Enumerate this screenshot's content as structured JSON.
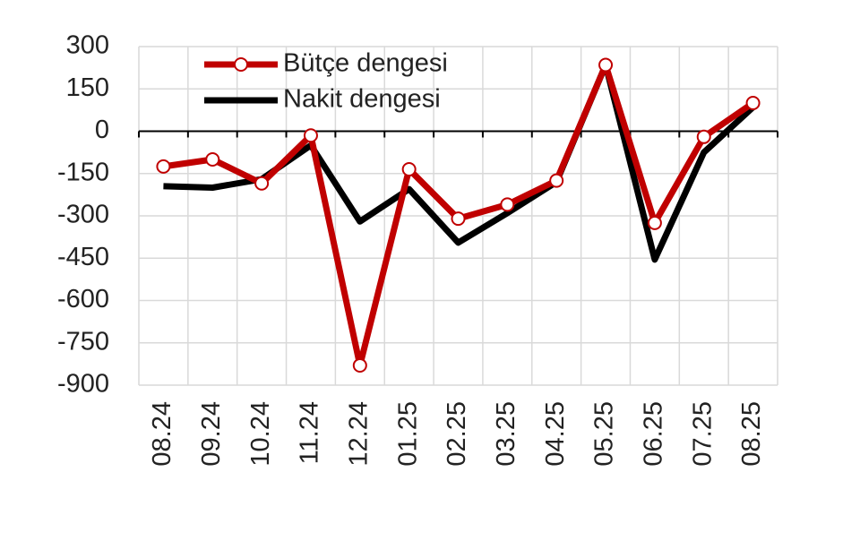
{
  "chart_data": {
    "type": "line",
    "categories": [
      "08.24",
      "09.24",
      "10.24",
      "11.24",
      "12.24",
      "01.25",
      "02.25",
      "03.25",
      "04.25",
      "05.25",
      "06.25",
      "07.25",
      "08.25"
    ],
    "series": [
      {
        "name": "Bütçe dengesi",
        "color": "#c00000",
        "marker": true,
        "values": [
          -125,
          -100,
          -185,
          -15,
          -830,
          -135,
          -310,
          -260,
          -175,
          235,
          -325,
          -20,
          100
        ]
      },
      {
        "name": "Nakit dengesi",
        "color": "#000000",
        "marker": false,
        "values": [
          -195,
          -200,
          -170,
          -50,
          -320,
          -205,
          -395,
          -290,
          -180,
          235,
          -455,
          -75,
          85
        ]
      }
    ],
    "ylim": [
      -900,
      300
    ],
    "yticks": [
      -900,
      -750,
      -600,
      -450,
      -300,
      -150,
      0,
      150,
      300
    ],
    "grid": true,
    "legend": "top-left"
  }
}
